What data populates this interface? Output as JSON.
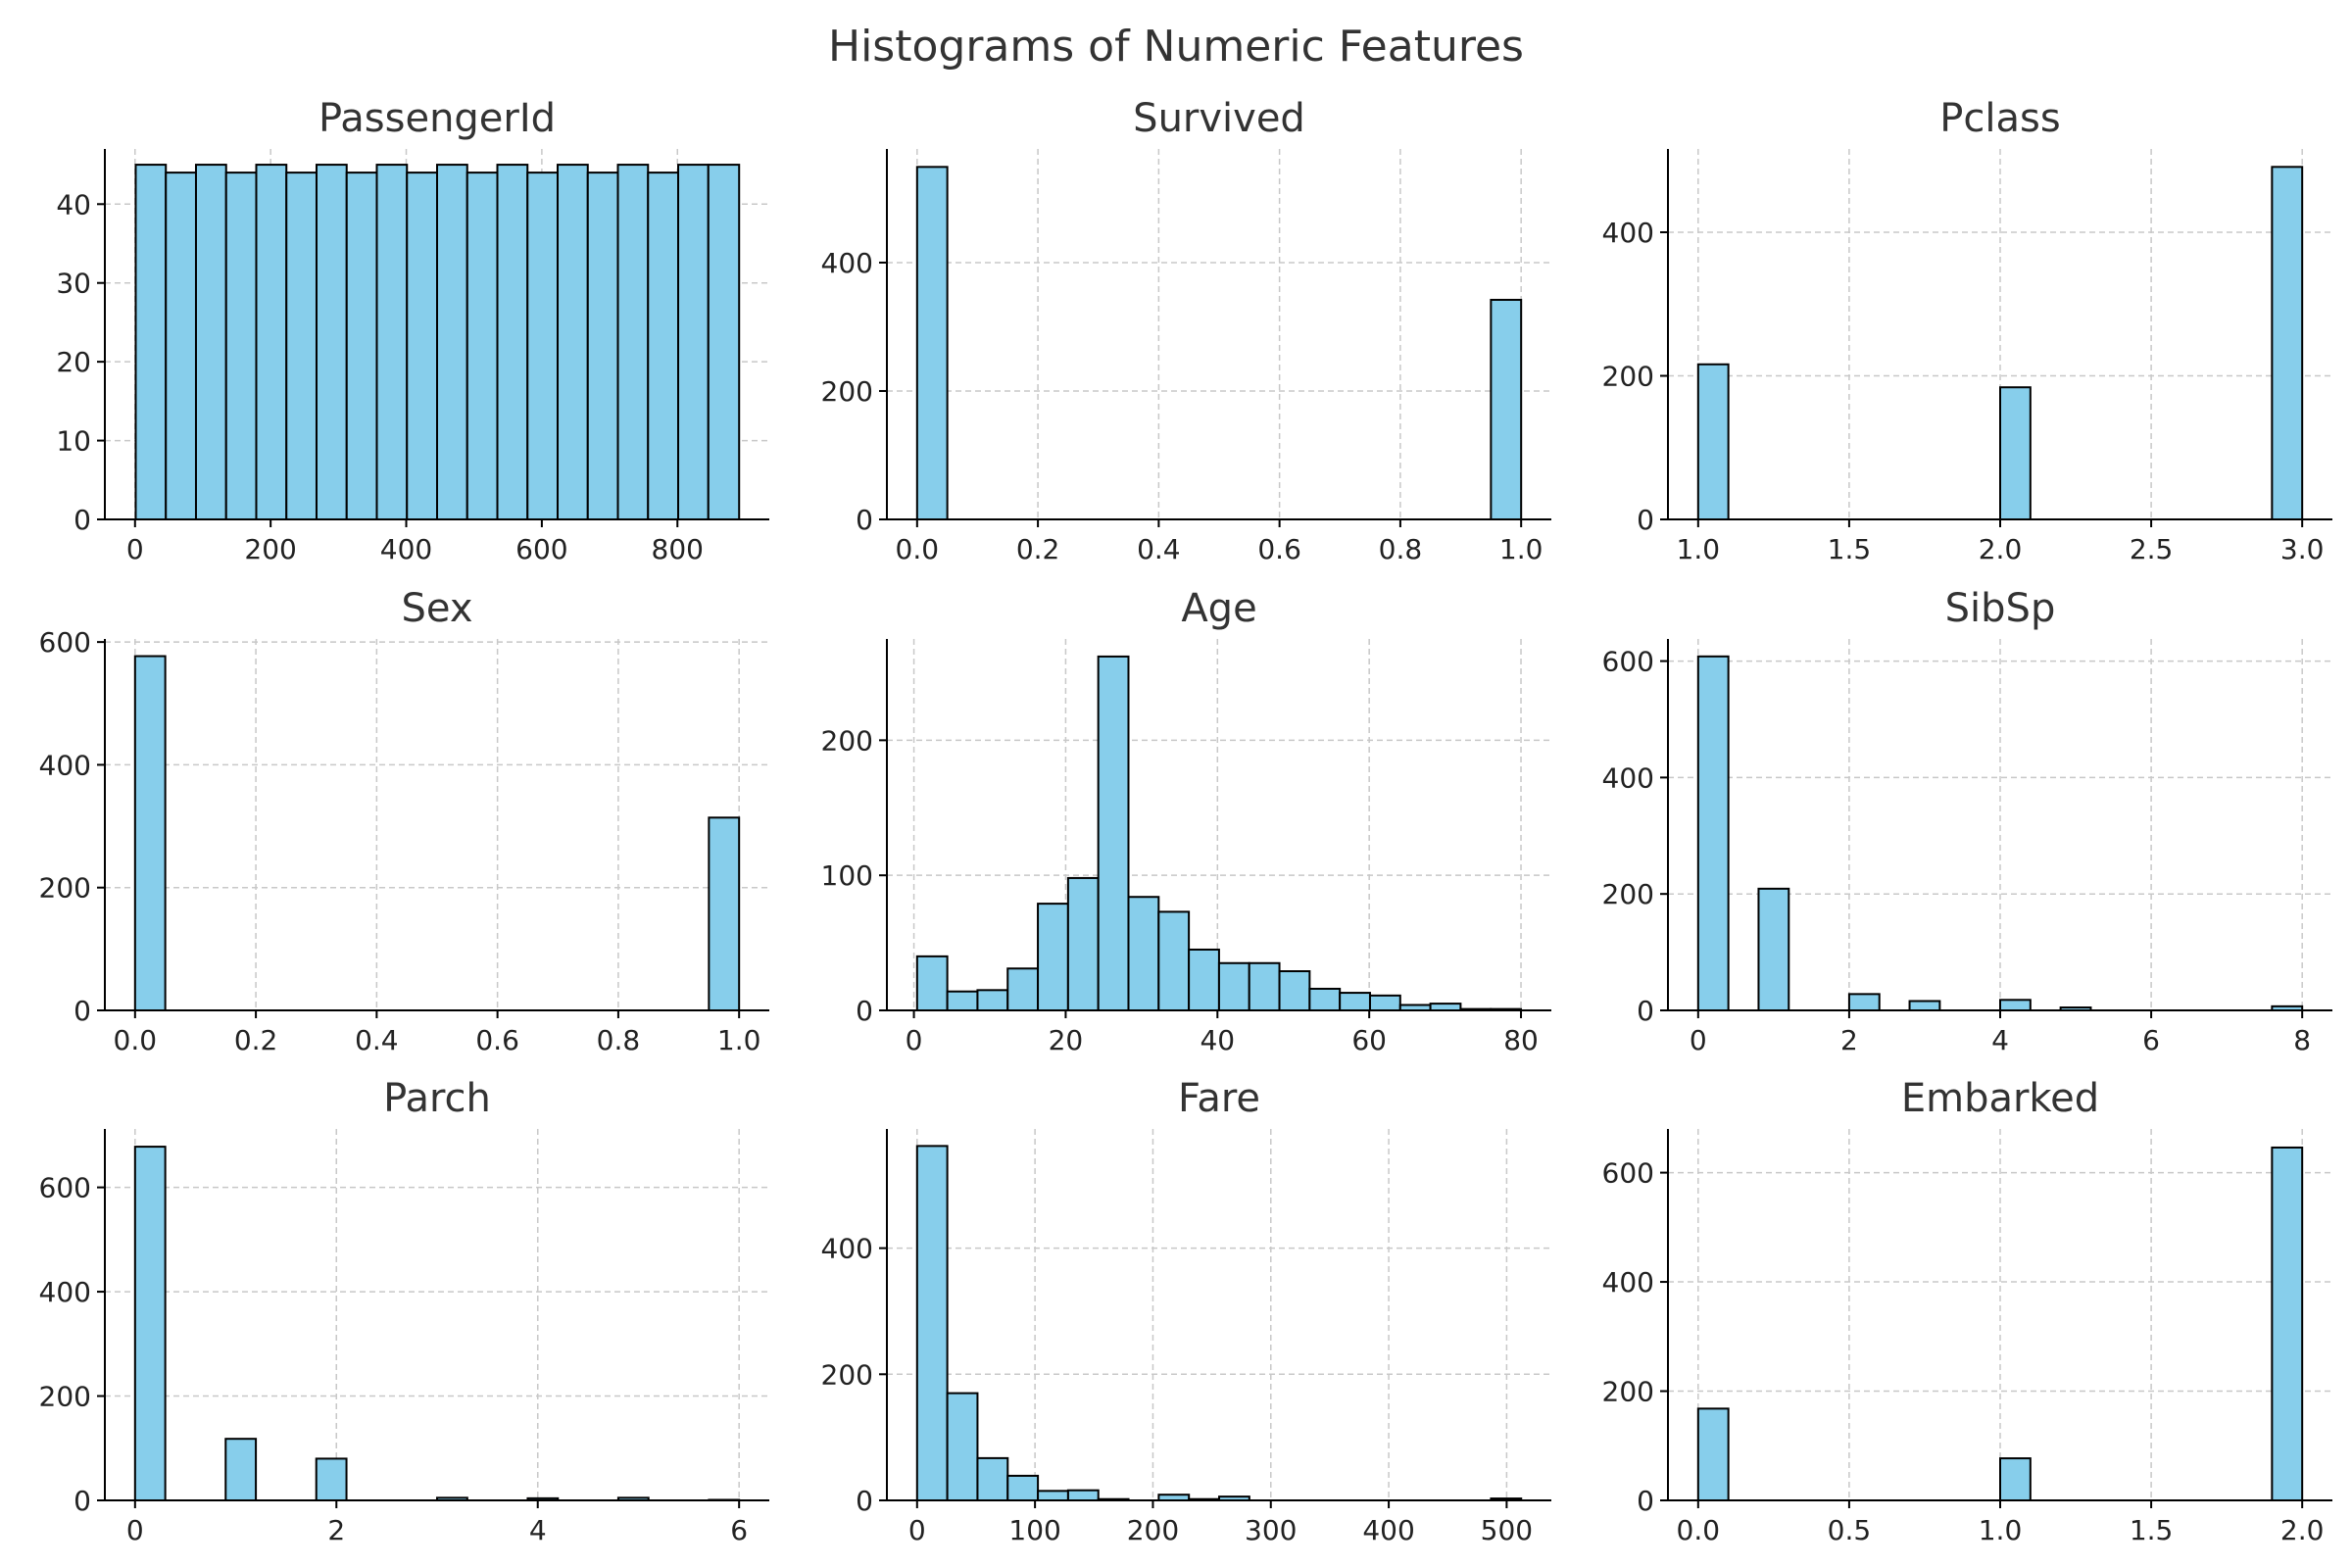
{
  "title": "Histograms of Numeric Features",
  "colors": {
    "bar_fill": "#87CEEB",
    "bar_edge": "#000000",
    "grid": "#c8c8c8",
    "axis": "#000000",
    "text": "#222222"
  },
  "chart_data": [
    {
      "type": "bar",
      "title": "PassengerId",
      "grid": true,
      "xlim": [
        -44.5,
        935.5
      ],
      "ylim": [
        0,
        47
      ],
      "xticks": [
        0,
        200,
        400,
        600,
        800
      ],
      "xtick_labels": [
        "0",
        "200",
        "400",
        "600",
        "800"
      ],
      "yticks": [
        0,
        10,
        20,
        30,
        40
      ],
      "ytick_labels": [
        "0",
        "10",
        "20",
        "30",
        "40"
      ],
      "bin_edges": [
        1,
        45.45,
        89.9,
        134.35,
        178.8,
        223.25,
        267.7,
        312.15,
        356.6,
        401.05,
        445.5,
        489.95,
        534.4,
        578.85,
        623.3,
        667.75,
        712.2,
        756.65,
        801.1,
        845.55,
        891
      ],
      "values": [
        45,
        44,
        45,
        44,
        45,
        44,
        45,
        44,
        45,
        44,
        45,
        44,
        45,
        44,
        45,
        44,
        45,
        44,
        45,
        45
      ]
    },
    {
      "type": "bar",
      "title": "Survived",
      "grid": true,
      "xlim": [
        -0.05,
        1.05
      ],
      "ylim": [
        0,
        577
      ],
      "xticks": [
        0,
        0.2,
        0.4,
        0.6,
        0.8,
        1.0
      ],
      "xtick_labels": [
        "0.0",
        "0.2",
        "0.4",
        "0.6",
        "0.8",
        "1.0"
      ],
      "yticks": [
        0,
        200,
        400
      ],
      "ytick_labels": [
        "0",
        "200",
        "400"
      ],
      "bin_edges": [
        0,
        0.05,
        0.1,
        0.15,
        0.2,
        0.25,
        0.3,
        0.35,
        0.4,
        0.45,
        0.5,
        0.55,
        0.6,
        0.65,
        0.7,
        0.75,
        0.8,
        0.85,
        0.9,
        0.95,
        1.0
      ],
      "values": [
        549,
        0,
        0,
        0,
        0,
        0,
        0,
        0,
        0,
        0,
        0,
        0,
        0,
        0,
        0,
        0,
        0,
        0,
        0,
        342
      ]
    },
    {
      "type": "bar",
      "title": "Pclass",
      "grid": true,
      "xlim": [
        0.9,
        3.1
      ],
      "ylim": [
        0,
        516
      ],
      "xticks": [
        1.0,
        1.5,
        2.0,
        2.5,
        3.0
      ],
      "xtick_labels": [
        "1.0",
        "1.5",
        "2.0",
        "2.5",
        "3.0"
      ],
      "yticks": [
        0,
        200,
        400
      ],
      "ytick_labels": [
        "0",
        "200",
        "400"
      ],
      "bin_edges": [
        1.0,
        1.1,
        1.2,
        1.3,
        1.4,
        1.5,
        1.6,
        1.7,
        1.8,
        1.9,
        2.0,
        2.1,
        2.2,
        2.3,
        2.4,
        2.5,
        2.6,
        2.7,
        2.8,
        2.9,
        3.0
      ],
      "values": [
        216,
        0,
        0,
        0,
        0,
        0,
        0,
        0,
        0,
        0,
        184,
        0,
        0,
        0,
        0,
        0,
        0,
        0,
        0,
        491
      ]
    },
    {
      "type": "bar",
      "title": "Sex",
      "grid": true,
      "xlim": [
        -0.05,
        1.05
      ],
      "ylim": [
        0,
        605
      ],
      "xticks": [
        0,
        0.2,
        0.4,
        0.6,
        0.8,
        1.0
      ],
      "xtick_labels": [
        "0.0",
        "0.2",
        "0.4",
        "0.6",
        "0.8",
        "1.0"
      ],
      "yticks": [
        0,
        200,
        400,
        600
      ],
      "ytick_labels": [
        "0",
        "200",
        "400",
        "600"
      ],
      "bin_edges": [
        0,
        0.05,
        0.1,
        0.15,
        0.2,
        0.25,
        0.3,
        0.35,
        0.4,
        0.45,
        0.5,
        0.55,
        0.6,
        0.65,
        0.7,
        0.75,
        0.8,
        0.85,
        0.9,
        0.95,
        1.0
      ],
      "values": [
        577,
        0,
        0,
        0,
        0,
        0,
        0,
        0,
        0,
        0,
        0,
        0,
        0,
        0,
        0,
        0,
        0,
        0,
        0,
        314
      ]
    },
    {
      "type": "bar",
      "title": "Age",
      "grid": true,
      "xlim": [
        -3.56,
        84.0
      ],
      "ylim": [
        0,
        275
      ],
      "xticks": [
        0,
        20,
        40,
        60,
        80
      ],
      "xtick_labels": [
        "0",
        "20",
        "40",
        "60",
        "80"
      ],
      "yticks": [
        0,
        100,
        200
      ],
      "ytick_labels": [
        "0",
        "100",
        "200"
      ],
      "bin_edges": [
        0.42,
        4.399,
        8.378,
        12.357,
        16.336,
        20.315,
        24.294,
        28.273,
        32.252,
        36.231,
        40.21,
        44.189,
        48.168,
        52.147,
        56.126,
        60.105,
        64.084,
        68.063,
        72.042,
        76.021,
        80.0
      ],
      "values": [
        40,
        14,
        15,
        31,
        79,
        98,
        262,
        84,
        73,
        45,
        35,
        35,
        29,
        16,
        13,
        11,
        4,
        5,
        1,
        1
      ]
    },
    {
      "type": "bar",
      "title": "SibSp",
      "grid": true,
      "xlim": [
        -0.4,
        8.4
      ],
      "ylim": [
        0,
        638
      ],
      "xticks": [
        0,
        2,
        4,
        6,
        8
      ],
      "xtick_labels": [
        "0",
        "2",
        "4",
        "6",
        "8"
      ],
      "yticks": [
        0,
        200,
        400,
        600
      ],
      "ytick_labels": [
        "0",
        "200",
        "400",
        "600"
      ],
      "bin_edges": [
        0,
        0.4,
        0.8,
        1.2,
        1.6,
        2.0,
        2.4,
        2.8,
        3.2,
        3.6,
        4.0,
        4.4,
        4.8,
        5.2,
        5.6,
        6.0,
        6.4,
        6.8,
        7.2,
        7.6,
        8.0
      ],
      "values": [
        608,
        0,
        209,
        0,
        0,
        28,
        0,
        16,
        0,
        0,
        18,
        0,
        5,
        0,
        0,
        0,
        0,
        0,
        0,
        7
      ]
    },
    {
      "type": "bar",
      "title": "Parch",
      "grid": true,
      "xlim": [
        -0.3,
        6.3
      ],
      "ylim": [
        0,
        712
      ],
      "xticks": [
        0,
        2,
        4,
        6
      ],
      "xtick_labels": [
        "0",
        "2",
        "4",
        "6"
      ],
      "yticks": [
        0,
        200,
        400,
        600
      ],
      "ytick_labels": [
        "0",
        "200",
        "400",
        "600"
      ],
      "bin_edges": [
        0,
        0.3,
        0.6,
        0.9,
        1.2,
        1.5,
        1.8,
        2.1,
        2.4,
        2.7,
        3.0,
        3.3,
        3.6,
        3.9,
        4.2,
        4.5,
        4.8,
        5.1,
        5.4,
        5.7,
        6.0
      ],
      "values": [
        678,
        0,
        0,
        118,
        0,
        0,
        80,
        0,
        0,
        0,
        5,
        0,
        0,
        4,
        0,
        0,
        5,
        0,
        0,
        1
      ]
    },
    {
      "type": "bar",
      "title": "Fare",
      "grid": true,
      "xlim": [
        -25.6,
        537.9
      ],
      "ylim": [
        0,
        589
      ],
      "xticks": [
        0,
        100,
        200,
        300,
        400,
        500
      ],
      "xtick_labels": [
        "0",
        "100",
        "200",
        "300",
        "400",
        "500"
      ],
      "yticks": [
        0,
        200,
        400
      ],
      "ytick_labels": [
        "0",
        "200",
        "400"
      ],
      "bin_edges": [
        0,
        25.616,
        51.233,
        76.849,
        102.466,
        128.082,
        153.699,
        179.315,
        204.932,
        230.548,
        256.165,
        281.781,
        307.398,
        333.014,
        358.63,
        384.247,
        409.863,
        435.48,
        461.096,
        486.713,
        512.329
      ],
      "values": [
        562,
        170,
        67,
        39,
        15,
        16,
        2,
        0,
        9,
        2,
        6,
        0,
        0,
        0,
        0,
        0,
        0,
        0,
        0,
        3
      ]
    },
    {
      "type": "bar",
      "title": "Embarked",
      "grid": true,
      "xlim": [
        -0.1,
        2.1
      ],
      "ylim": [
        0,
        680
      ],
      "xticks": [
        0,
        0.5,
        1.0,
        1.5,
        2.0
      ],
      "xtick_labels": [
        "0.0",
        "0.5",
        "1.0",
        "1.5",
        "2.0"
      ],
      "yticks": [
        0,
        200,
        400,
        600
      ],
      "ytick_labels": [
        "0",
        "200",
        "400",
        "600"
      ],
      "bin_edges": [
        0,
        0.1,
        0.2,
        0.3,
        0.4,
        0.5,
        0.6,
        0.7,
        0.8,
        0.9,
        1.0,
        1.1,
        1.2,
        1.3,
        1.4,
        1.5,
        1.6,
        1.7,
        1.8,
        1.9,
        2.0
      ],
      "values": [
        168,
        0,
        0,
        0,
        0,
        0,
        0,
        0,
        0,
        0,
        77,
        0,
        0,
        0,
        0,
        0,
        0,
        0,
        0,
        646
      ]
    }
  ]
}
